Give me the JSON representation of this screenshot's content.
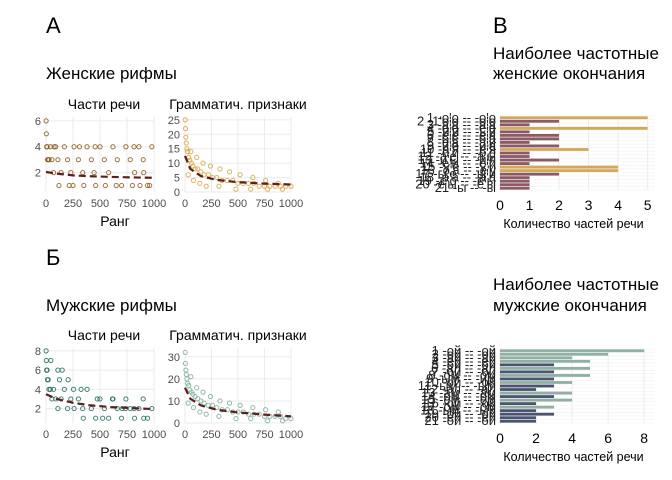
{
  "labels": {
    "panel_a": "А",
    "panel_b": "В",
    "panel_c": "Б",
    "female_title": "Женские рифмы",
    "male_title": "Мужские рифмы",
    "female_bar_title_1": "Наиболее частотные",
    "female_bar_title_2": "женские окончания",
    "male_bar_title_1": "Наиболее частотные",
    "male_bar_title_2": "мужские окончания"
  },
  "colors": {
    "female_pos_points": "#8c5a1b",
    "female_gram_points": "#d9a441",
    "male_pos_points": "#1f6b5e",
    "male_gram_points": "#7fae9c",
    "trend": "#5a1f1f",
    "female_bar_1": "#8c5a64",
    "female_bar_2": "#d4a85a",
    "male_bar_1": "#4a5470",
    "male_bar_2": "#8fb0a3"
  },
  "chart_data": [
    {
      "id": "female-pos",
      "type": "scatter",
      "title": "Части речи",
      "xlabel": "Ранг",
      "ylabel": "",
      "xlim": [
        0,
        1000
      ],
      "ylim": [
        0.5,
        6.3
      ],
      "xticks": [
        "0",
        "250",
        "500",
        "750",
        "1000"
      ],
      "yticks": [
        "2",
        "4",
        "6"
      ],
      "points": [
        [
          1,
          6
        ],
        [
          3,
          5
        ],
        [
          6,
          4
        ],
        [
          10,
          4
        ],
        [
          14,
          3
        ],
        [
          20,
          3
        ],
        [
          28,
          3
        ],
        [
          40,
          4
        ],
        [
          55,
          3
        ],
        [
          70,
          2
        ],
        [
          90,
          4
        ],
        [
          110,
          3
        ],
        [
          140,
          2
        ],
        [
          170,
          4
        ],
        [
          200,
          3
        ],
        [
          230,
          2
        ],
        [
          260,
          4
        ],
        [
          300,
          3
        ],
        [
          340,
          2
        ],
        [
          380,
          4
        ],
        [
          420,
          3
        ],
        [
          460,
          1
        ],
        [
          500,
          4
        ],
        [
          540,
          3
        ],
        [
          580,
          2
        ],
        [
          620,
          4
        ],
        [
          660,
          3
        ],
        [
          700,
          1
        ],
        [
          740,
          4
        ],
        [
          780,
          3
        ],
        [
          820,
          2
        ],
        [
          860,
          4
        ],
        [
          900,
          3
        ],
        [
          940,
          1
        ],
        [
          980,
          4
        ],
        [
          120,
          1
        ],
        [
          250,
          1
        ],
        [
          350,
          1
        ],
        [
          550,
          1
        ],
        [
          650,
          1
        ],
        [
          800,
          1
        ],
        [
          870,
          1
        ],
        [
          960,
          1
        ],
        [
          75,
          4
        ],
        [
          310,
          4
        ],
        [
          455,
          4
        ],
        [
          815,
          4
        ],
        [
          905,
          2
        ],
        [
          215,
          1
        ],
        [
          445,
          2
        ]
      ],
      "trend": [
        [
          0,
          2.05
        ],
        [
          100,
          1.92
        ],
        [
          250,
          1.78
        ],
        [
          400,
          1.72
        ],
        [
          600,
          1.67
        ],
        [
          800,
          1.63
        ],
        [
          1000,
          1.6
        ]
      ]
    },
    {
      "id": "female-gram",
      "type": "scatter",
      "title": "Грамматич. признаки",
      "xlabel": "",
      "ylabel": "",
      "xlim": [
        0,
        1000
      ],
      "ylim": [
        0,
        26
      ],
      "xticks": [
        "0",
        "250",
        "500",
        "750",
        "1000"
      ],
      "yticks": [
        "0",
        "5",
        "10",
        "15",
        "20",
        "25"
      ],
      "points": [
        [
          2,
          25
        ],
        [
          4,
          22
        ],
        [
          8,
          19
        ],
        [
          12,
          17
        ],
        [
          18,
          15
        ],
        [
          25,
          14
        ],
        [
          35,
          12
        ],
        [
          45,
          11
        ],
        [
          60,
          10
        ],
        [
          75,
          9
        ],
        [
          95,
          8
        ],
        [
          120,
          8
        ],
        [
          150,
          7
        ],
        [
          180,
          6
        ],
        [
          220,
          6
        ],
        [
          260,
          5
        ],
        [
          300,
          5
        ],
        [
          350,
          4
        ],
        [
          400,
          4
        ],
        [
          450,
          4
        ],
        [
          500,
          3
        ],
        [
          550,
          3
        ],
        [
          600,
          3
        ],
        [
          650,
          3
        ],
        [
          700,
          2
        ],
        [
          750,
          2
        ],
        [
          800,
          2
        ],
        [
          850,
          2
        ],
        [
          900,
          2
        ],
        [
          950,
          2
        ],
        [
          1000,
          2
        ],
        [
          30,
          6
        ],
        [
          80,
          4
        ],
        [
          140,
          3
        ],
        [
          200,
          2
        ],
        [
          320,
          2
        ],
        [
          480,
          1
        ],
        [
          620,
          1
        ],
        [
          780,
          1
        ],
        [
          920,
          1
        ],
        [
          55,
          14
        ],
        [
          110,
          12
        ],
        [
          170,
          10
        ],
        [
          240,
          9
        ],
        [
          330,
          8
        ],
        [
          420,
          7
        ],
        [
          520,
          6
        ],
        [
          640,
          5
        ],
        [
          760,
          4
        ],
        [
          880,
          3
        ]
      ],
      "trend": [
        [
          0,
          12.5
        ],
        [
          50,
          8
        ],
        [
          150,
          5.5
        ],
        [
          300,
          4.2
        ],
        [
          500,
          3.4
        ],
        [
          750,
          2.9
        ],
        [
          1000,
          2.6
        ]
      ]
    },
    {
      "id": "male-pos",
      "type": "scatter",
      "title": "Части речи",
      "xlabel": "Ранг",
      "ylabel": "",
      "xlim": [
        0,
        1000
      ],
      "ylim": [
        0.5,
        8.3
      ],
      "xticks": [
        "0",
        "250",
        "500",
        "750",
        "1000"
      ],
      "yticks": [
        "2",
        "4",
        "6",
        "8"
      ],
      "points": [
        [
          1,
          8
        ],
        [
          3,
          7
        ],
        [
          6,
          6
        ],
        [
          10,
          6
        ],
        [
          14,
          5
        ],
        [
          20,
          5
        ],
        [
          28,
          4
        ],
        [
          40,
          4
        ],
        [
          55,
          3
        ],
        [
          70,
          4
        ],
        [
          90,
          3
        ],
        [
          110,
          2
        ],
        [
          140,
          3
        ],
        [
          170,
          4
        ],
        [
          200,
          2
        ],
        [
          230,
          3
        ],
        [
          260,
          2
        ],
        [
          300,
          3
        ],
        [
          340,
          2
        ],
        [
          380,
          4
        ],
        [
          420,
          2
        ],
        [
          460,
          1
        ],
        [
          500,
          3
        ],
        [
          540,
          2
        ],
        [
          580,
          1
        ],
        [
          620,
          3
        ],
        [
          660,
          2
        ],
        [
          700,
          1
        ],
        [
          740,
          3
        ],
        [
          780,
          2
        ],
        [
          820,
          1
        ],
        [
          860,
          2
        ],
        [
          900,
          3
        ],
        [
          940,
          1
        ],
        [
          980,
          2
        ],
        [
          125,
          5
        ],
        [
          205,
          5
        ],
        [
          255,
          4
        ],
        [
          325,
          4
        ],
        [
          475,
          3
        ],
        [
          615,
          3
        ],
        [
          735,
          2
        ],
        [
          815,
          2
        ],
        [
          905,
          1
        ],
        [
          45,
          7
        ],
        [
          150,
          6
        ],
        [
          110,
          6
        ],
        [
          345,
          1
        ],
        [
          525,
          1
        ],
        [
          705,
          2
        ]
      ],
      "trend": [
        [
          0,
          3.5
        ],
        [
          100,
          3.0
        ],
        [
          250,
          2.6
        ],
        [
          400,
          2.35
        ],
        [
          600,
          2.15
        ],
        [
          800,
          2.05
        ],
        [
          1000,
          1.95
        ]
      ]
    },
    {
      "id": "male-gram",
      "type": "scatter",
      "title": "Грамматич. признаки",
      "xlabel": "",
      "ylabel": "",
      "xlim": [
        0,
        1000
      ],
      "ylim": [
        0,
        34
      ],
      "xticks": [
        "0",
        "250",
        "500",
        "750",
        "1000"
      ],
      "yticks": [
        "0",
        "10",
        "20",
        "30"
      ],
      "points": [
        [
          2,
          32
        ],
        [
          4,
          27
        ],
        [
          8,
          24
        ],
        [
          12,
          22
        ],
        [
          18,
          20
        ],
        [
          25,
          18
        ],
        [
          35,
          17
        ],
        [
          45,
          15
        ],
        [
          60,
          14
        ],
        [
          75,
          13
        ],
        [
          95,
          12
        ],
        [
          120,
          11
        ],
        [
          150,
          10
        ],
        [
          180,
          9
        ],
        [
          220,
          8
        ],
        [
          260,
          8
        ],
        [
          300,
          7
        ],
        [
          350,
          6
        ],
        [
          400,
          6
        ],
        [
          450,
          5
        ],
        [
          500,
          5
        ],
        [
          550,
          5
        ],
        [
          600,
          4
        ],
        [
          650,
          4
        ],
        [
          700,
          4
        ],
        [
          750,
          3
        ],
        [
          800,
          3
        ],
        [
          850,
          3
        ],
        [
          900,
          3
        ],
        [
          950,
          2
        ],
        [
          1000,
          2
        ],
        [
          30,
          9
        ],
        [
          80,
          7
        ],
        [
          140,
          5
        ],
        [
          200,
          4
        ],
        [
          320,
          3
        ],
        [
          480,
          2
        ],
        [
          620,
          2
        ],
        [
          780,
          1
        ],
        [
          920,
          1
        ],
        [
          55,
          21
        ],
        [
          110,
          16
        ],
        [
          170,
          14
        ],
        [
          240,
          12
        ],
        [
          330,
          10
        ],
        [
          420,
          9
        ],
        [
          520,
          8
        ],
        [
          640,
          7
        ],
        [
          760,
          6
        ],
        [
          880,
          5
        ]
      ],
      "trend": [
        [
          0,
          16
        ],
        [
          50,
          11
        ],
        [
          150,
          8
        ],
        [
          300,
          6
        ],
        [
          500,
          4.8
        ],
        [
          750,
          3.8
        ],
        [
          1000,
          3.0
        ]
      ]
    },
    {
      "id": "female-endings",
      "type": "bar",
      "orientation": "horizontal",
      "title": "Наиболее частотные женские окончания",
      "xlabel": "Количество частей речи",
      "xlim": [
        0,
        5.25
      ],
      "xticks": [
        "0",
        "1",
        "2",
        "3",
        "4",
        "5"
      ],
      "categories": [
        "1 -о'о -- -о'о",
        "2 -1'о'о -- -о'о",
        "3 -а'а -- -а'а",
        "4 -е'е -- -е'е",
        "5 -и'и -- -ь'и",
        "6 -е'е -- -е'а",
        "7 -о'е -- -о'а",
        "8 -е'а -- -а'и",
        "9 -и'е -- -и'а",
        "10 -а'я -- -е'я",
        "11 -о'и -- -о'е",
        "12 -а'е -- -а'ы",
        "13 -и'ы -- -и'я",
        "14 -е'и -- -е'и",
        "15 -у'е -- -у'и",
        "16 -о'а -- -е'у",
        "17 -ы'е -- -ы'и",
        "18 -а'а -- -а'а",
        "19 -е'о -- -е'ы",
        "20 -е'ы -- -е'ы",
        "21 -ы -- -ы"
      ],
      "values": [
        5,
        2,
        1,
        5,
        1,
        2,
        2,
        1,
        2,
        3,
        1,
        1,
        2,
        1,
        4,
        4,
        2,
        1,
        1,
        1,
        1
      ],
      "series_colors": [
        2,
        1,
        1,
        2,
        1,
        1,
        1,
        1,
        1,
        2,
        1,
        1,
        1,
        1,
        2,
        2,
        1,
        1,
        1,
        1,
        1
      ]
    },
    {
      "id": "male-endings",
      "type": "bar",
      "orientation": "horizontal",
      "title": "Наиболее частотные мужские окончания",
      "xlabel": "Количество частей речи",
      "xlim": [
        0,
        8.6
      ],
      "xticks": [
        "0",
        "2",
        "4",
        "6",
        "8"
      ],
      "categories": [
        "1 -ой -- -ой",
        "2 -ой -- -ой",
        "3 -ай -- -ай",
        "4 -ей -- -ей",
        "5 -ой -- -ой",
        "6 -ал -- -ал",
        "7 -ой -- -ой",
        "8 -ом -- -ом",
        "9 -ым -- -им",
        "10 -ой -- -ой",
        "11 -ым -- -ым",
        "12 -ал -- -ал",
        "13 -ам -- -ам",
        "14 -ом -- -ом",
        "15 -ем -- -ем",
        "16 -ой -- -ой",
        "17 -ом -- -ом",
        "18 -ый -- -ый",
        "19 -ой -- -ой",
        "20 -ей -- -ей",
        "21 -ой -- -ой"
      ],
      "values": [
        8,
        6,
        4,
        5,
        3,
        5,
        3,
        5,
        3,
        4,
        3,
        2,
        4,
        3,
        4,
        2,
        3,
        2,
        3,
        2,
        2
      ],
      "series_colors": [
        2,
        2,
        2,
        2,
        1,
        2,
        1,
        2,
        1,
        2,
        1,
        1,
        2,
        1,
        2,
        1,
        2,
        1,
        1,
        1,
        1
      ]
    }
  ]
}
